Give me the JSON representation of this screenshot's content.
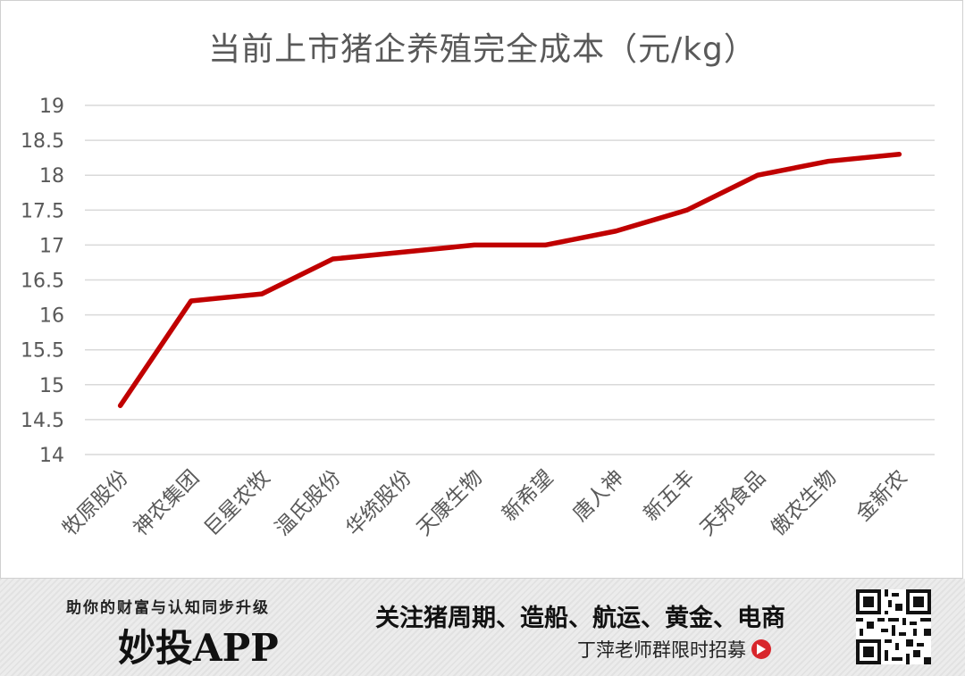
{
  "chart_data": {
    "type": "line",
    "title": "当前上市猪企养殖完全成本（元/kg）",
    "categories": [
      "牧原股份",
      "神农集团",
      "巨星农牧",
      "温氏股份",
      "华统股份",
      "天康生物",
      "新希望",
      "唐人神",
      "新五丰",
      "天邦食品",
      "傲农生物",
      "金新农"
    ],
    "values": [
      14.7,
      16.2,
      16.3,
      16.8,
      16.9,
      17.0,
      17.0,
      17.2,
      17.5,
      18.0,
      18.2,
      18.3
    ],
    "ylim": [
      14,
      19
    ],
    "yticks": [
      "14",
      "14.5",
      "15",
      "15.5",
      "16",
      "16.5",
      "17",
      "17.5",
      "18",
      "18.5",
      "19"
    ],
    "ytick_values": [
      14,
      14.5,
      15,
      15.5,
      16,
      16.5,
      17,
      17.5,
      18,
      18.5,
      19
    ],
    "grid": true,
    "line_color": "#c00000"
  },
  "banner": {
    "slogan": "助你的财富与认知同步升级",
    "brand": "妙投APP",
    "follow": "关注猪周期、造船、航运、黄金、电商",
    "recruit": "丁萍老师群限时招募"
  }
}
